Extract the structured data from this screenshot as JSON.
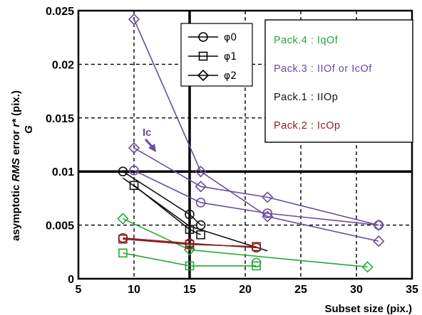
{
  "chart_data": {
    "type": "line",
    "title": "",
    "xlabel": "Subset size (pix.)",
    "ylabel_parts": {
      "pre": "asymptotic ",
      "italic": "RMS",
      "mid": " error ",
      "sym": "r*",
      "post": " (pix.)",
      "sub": "G"
    },
    "xlim": [
      5,
      35
    ],
    "ylim": [
      0,
      0.025
    ],
    "xticks": [
      "5",
      "10",
      "15",
      "20",
      "25",
      "30",
      "35"
    ],
    "yticks": [
      "0",
      "0.005",
      "0.01",
      "0.015",
      "0.02",
      "0.025"
    ],
    "grid": "dashed major gridlines, bold lines at x=15 and y=0.01",
    "marker_legend": {
      "position": "top-center",
      "entries": [
        {
          "label": "φ0",
          "marker": "circle"
        },
        {
          "label": "φ1",
          "marker": "square"
        },
        {
          "label": "φ2",
          "marker": "diamond"
        }
      ]
    },
    "pack_legend": {
      "position": "top-right",
      "entries": [
        {
          "label": "Pack.4 : IqOf",
          "color": "#22a83a"
        },
        {
          "label": "Pack.3 : IIOf or IcOf",
          "color": "#6a4c9c"
        },
        {
          "label": "Pack.1 : IIOp",
          "color": "#111111"
        },
        {
          "label": "Pack.2 : IcOp",
          "color": "#8b1e1e"
        }
      ]
    },
    "annotation": {
      "text": "Ic",
      "color": "#6a4c9c",
      "x": 12,
      "y": 0.013
    },
    "series": [
      {
        "name": "Pack.3 : IIOf or IcOf",
        "marker": "diamond",
        "color": "#6a4c9c",
        "points": [
          [
            10,
            0.0242
          ],
          [
            16,
            0.01
          ],
          [
            22,
            0.0058
          ],
          [
            32,
            0.0035
          ]
        ]
      },
      {
        "name": "Pack.3 : IIOf or IcOf",
        "marker": "diamond",
        "color": "#6a4c9c",
        "points": [
          [
            10,
            0.0122
          ],
          [
            16,
            0.0086
          ],
          [
            22,
            0.0076
          ],
          [
            32,
            0.005
          ]
        ]
      },
      {
        "name": "Pack.3 : IIOf or IcOf",
        "marker": "circle",
        "color": "#6a4c9c",
        "points": [
          [
            10,
            0.0101
          ],
          [
            16,
            0.0071
          ],
          [
            22,
            0.0061
          ],
          [
            32,
            0.005
          ]
        ]
      },
      {
        "name": "Pack.1 : IIOp",
        "marker": "circle",
        "color": "#111111",
        "points": [
          [
            9,
            0.01
          ],
          [
            15,
            0.006
          ],
          [
            16,
            0.005
          ]
        ]
      },
      {
        "name": "Pack.1 : IIOp",
        "marker": "square",
        "color": "#111111",
        "points": [
          [
            10,
            0.0087
          ],
          [
            15,
            0.0046
          ],
          [
            16,
            0.0041
          ]
        ]
      },
      {
        "name": "Pack.1 : IIOp",
        "marker": "none",
        "color": "#111111",
        "points": [
          [
            9,
            0.0094
          ],
          [
            15,
            0.0049
          ],
          [
            22,
            0.0026
          ]
        ]
      },
      {
        "name": "Pack.4 : IqOf",
        "marker": "diamond",
        "color": "#22a83a",
        "points": [
          [
            9,
            0.0056
          ],
          [
            15,
            0.0027
          ],
          [
            31,
            0.0011
          ]
        ]
      },
      {
        "name": "Pack.4 : IqOf",
        "marker": "square",
        "color": "#22a83a",
        "points": [
          [
            9,
            0.0024
          ],
          [
            15,
            0.0012
          ],
          [
            21,
            0.0012
          ]
        ]
      },
      {
        "name": "Pack.4 : IqOf",
        "marker": "circle",
        "color": "#22a83a",
        "points": [
          [
            21,
            0.0015
          ]
        ]
      },
      {
        "name": "Pack.2 : IcOp",
        "marker": "square",
        "color": "#8b1e1e",
        "points": [
          [
            9,
            0.0037
          ],
          [
            15,
            0.0032
          ],
          [
            21,
            0.003
          ]
        ]
      },
      {
        "name": "Pack.2 : IcOp",
        "marker": "circle",
        "color": "#8b1e1e",
        "points": [
          [
            9,
            0.0038
          ],
          [
            15,
            0.0033
          ],
          [
            21,
            0.0029
          ]
        ]
      }
    ]
  }
}
